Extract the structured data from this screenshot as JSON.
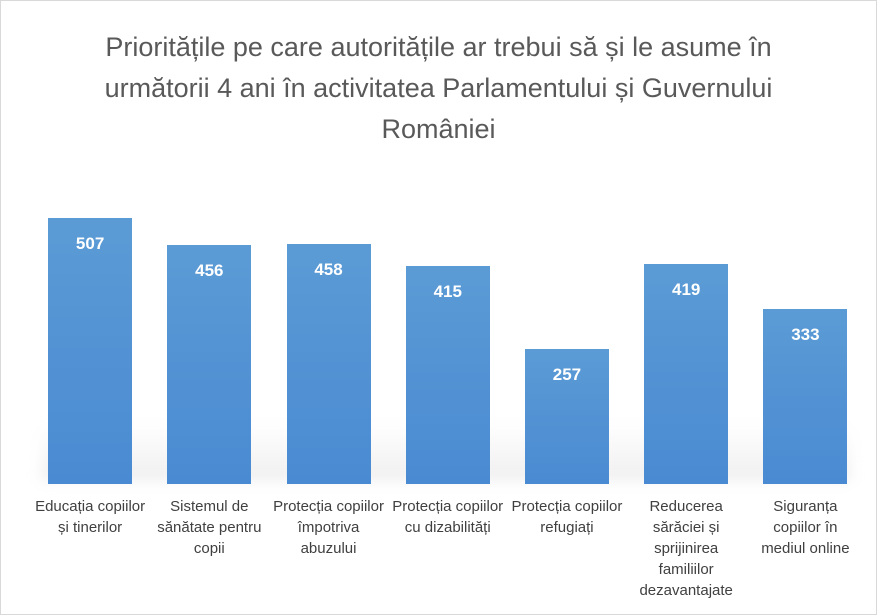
{
  "chart_data": {
    "type": "bar",
    "title": "Prioritățile pe care autoritățile ar trebui să și le asume în următorii 4 ani în activitatea Parlamentului și Guvernului României",
    "categories": [
      "Educația copiilor și tinerilor",
      "Sistemul de sănătate pentru copii",
      "Protecția copiilor împotriva abuzului",
      "Protecția copiilor cu dizabilități",
      "Protecția copiilor refugiați",
      "Reducerea sărăciei și sprijinirea familiilor dezavantajate",
      "Siguranța copiilor în mediul online"
    ],
    "values": [
      507,
      456,
      458,
      415,
      257,
      419,
      333
    ],
    "color": "#4a8ad2",
    "ylim": [
      0,
      600
    ]
  }
}
